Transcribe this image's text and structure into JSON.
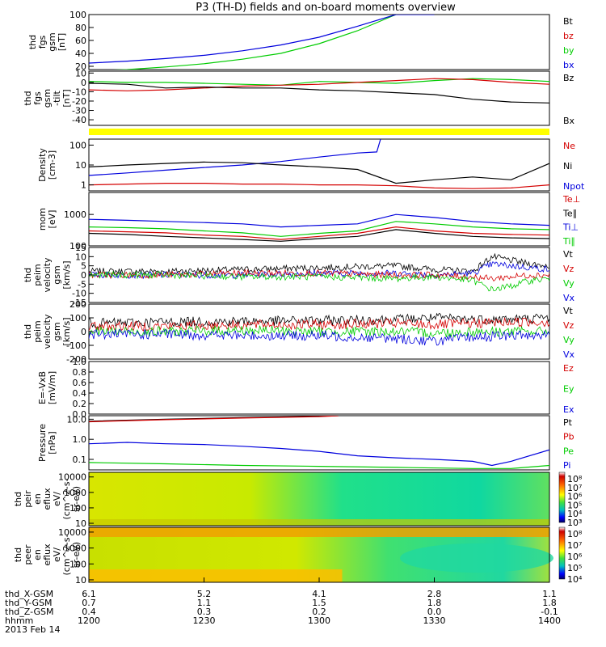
{
  "title": "P3 (TH-D) fields and on-board moments overview",
  "colors": {
    "black": "#000000",
    "red": "#d40000",
    "green": "#00cc00",
    "blue": "#0000dd",
    "yellow": "#ffff00",
    "panel_border": "#000000"
  },
  "chart_data": [
    {
      "type": "line",
      "ylabel_lines": [
        "thd",
        "fgs",
        "gsm",
        "[nT]"
      ],
      "ylim": [
        15,
        100
      ],
      "yticks": [
        "20",
        "40",
        "60",
        "80",
        "100"
      ],
      "legend": [
        {
          "label": "Bt",
          "color": "black"
        },
        {
          "label": "bz",
          "color": "red"
        },
        {
          "label": "by",
          "color": "green"
        },
        {
          "label": "bx",
          "color": "blue"
        }
      ],
      "series": [
        {
          "color": "green",
          "x": [
            1200,
            1210,
            1220,
            1230,
            1240,
            1250,
            1300,
            1310,
            1320
          ],
          "y": [
            13,
            15,
            19,
            24,
            31,
            40,
            55,
            75,
            100
          ]
        },
        {
          "color": "blue",
          "x": [
            1200,
            1210,
            1220,
            1230,
            1240,
            1250,
            1300,
            1310,
            1320,
            1330
          ],
          "y": [
            25,
            28,
            32,
            37,
            44,
            53,
            65,
            82,
            100,
            100
          ]
        }
      ]
    },
    {
      "type": "line",
      "ylabel_lines": [
        "thd",
        "fgs",
        "gsm",
        "-tilt",
        "[nT]"
      ],
      "ylim": [
        -46,
        12
      ],
      "yticks": [
        "10",
        "0",
        "-10",
        "-20",
        "-30",
        "-40"
      ],
      "legend": [
        {
          "label": "Bz",
          "color": "black"
        },
        {
          "label": "Bx",
          "color": "black"
        }
      ],
      "series": [
        {
          "color": "green",
          "x": [
            1200,
            1210,
            1220,
            1230,
            1240,
            1250,
            1300,
            1310,
            1320,
            1330,
            1340,
            1350,
            1400
          ],
          "y": [
            1,
            0,
            0,
            -1,
            -2,
            -3,
            1,
            0,
            -1,
            2,
            4,
            3,
            1
          ]
        },
        {
          "color": "red",
          "x": [
            1200,
            1210,
            1220,
            1230,
            1240,
            1250,
            1300,
            1310,
            1320,
            1330,
            1340,
            1350,
            1400
          ],
          "y": [
            -8,
            -9,
            -8,
            -6,
            -4,
            -3,
            -2,
            0,
            2,
            4,
            3,
            0,
            -2
          ]
        },
        {
          "color": "black",
          "x": [
            1200,
            1210,
            1220,
            1230,
            1240,
            1250,
            1300,
            1310,
            1320,
            1330,
            1340,
            1350,
            1400
          ],
          "y": [
            -1,
            -2,
            -6,
            -5,
            -6,
            -6,
            -8,
            -9,
            -11,
            -13,
            -18,
            -21,
            -22
          ]
        }
      ]
    },
    {
      "type": "line",
      "ylabel_lines": [
        "Density",
        "[cm-3]"
      ],
      "ylim": [
        0.5,
        200
      ],
      "yscale": "log",
      "yticks": [
        "100",
        "10",
        "1"
      ],
      "legend": [
        {
          "label": "Ne",
          "color": "red"
        },
        {
          "label": "Ni",
          "color": "black"
        },
        {
          "label": "Npot",
          "color": "blue"
        }
      ],
      "series": [
        {
          "color": "blue",
          "x": [
            1200,
            1210,
            1220,
            1230,
            1240,
            1250,
            1300,
            1310,
            1315,
            1316
          ],
          "y": [
            3,
            4,
            5.5,
            7.5,
            10,
            15,
            25,
            40,
            45,
            200
          ]
        },
        {
          "color": "black",
          "x": [
            1200,
            1210,
            1220,
            1230,
            1240,
            1250,
            1300,
            1310,
            1320,
            1330,
            1340,
            1350,
            1400
          ],
          "y": [
            8,
            10,
            12,
            14,
            13,
            10,
            8,
            6,
            1.2,
            1.8,
            2.5,
            1.8,
            12
          ]
        },
        {
          "color": "red",
          "x": [
            1200,
            1210,
            1220,
            1230,
            1240,
            1250,
            1300,
            1310,
            1320,
            1330,
            1340,
            1350,
            1400
          ],
          "y": [
            1,
            1.1,
            1.2,
            1.2,
            1.1,
            1.1,
            1.0,
            1.0,
            0.9,
            0.7,
            0.65,
            0.7,
            1.0
          ]
        }
      ]
    },
    {
      "type": "line",
      "ylabel_lines": [
        "mom",
        "[eV]"
      ],
      "ylim": [
        100,
        5000
      ],
      "yscale": "log",
      "yticks": [
        "1000",
        "100"
      ],
      "legend": [
        {
          "label": "Te⊥",
          "color": "red"
        },
        {
          "label": "Te∥",
          "color": "black"
        },
        {
          "label": "Ti⊥",
          "color": "blue"
        },
        {
          "label": "Ti∥",
          "color": "green"
        }
      ],
      "series": [
        {
          "color": "blue",
          "x": [
            1200,
            1210,
            1220,
            1230,
            1240,
            1250,
            1300,
            1310,
            1320,
            1330,
            1340,
            1350,
            1400
          ],
          "y": [
            700,
            650,
            600,
            550,
            500,
            400,
            450,
            500,
            1000,
            800,
            600,
            500,
            450
          ]
        },
        {
          "color": "green",
          "x": [
            1200,
            1210,
            1220,
            1230,
            1240,
            1250,
            1300,
            1310,
            1320,
            1330,
            1340,
            1350,
            1400
          ],
          "y": [
            400,
            380,
            350,
            300,
            260,
            200,
            250,
            300,
            600,
            500,
            400,
            350,
            330
          ]
        },
        {
          "color": "red",
          "x": [
            1200,
            1210,
            1220,
            1230,
            1240,
            1250,
            1300,
            1310,
            1320,
            1330,
            1340,
            1350,
            1400
          ],
          "y": [
            300,
            280,
            260,
            220,
            200,
            160,
            200,
            250,
            400,
            300,
            250,
            230,
            220
          ]
        },
        {
          "color": "black",
          "x": [
            1200,
            1210,
            1220,
            1230,
            1240,
            1250,
            1300,
            1310,
            1320,
            1330,
            1340,
            1350,
            1400
          ],
          "y": [
            250,
            230,
            200,
            180,
            160,
            140,
            170,
            200,
            330,
            250,
            200,
            180,
            170
          ]
        }
      ]
    },
    {
      "type": "line",
      "ylabel_lines": [
        "thd",
        "peim",
        "velocity",
        "gsm",
        "[km/s]"
      ],
      "ylim": [
        -15,
        15
      ],
      "yticks": [
        "15",
        "10",
        "5",
        "0",
        "-5",
        "-10",
        "-15"
      ],
      "legend": [
        {
          "label": "Vt",
          "color": "black"
        },
        {
          "label": "Vz",
          "color": "red"
        },
        {
          "label": "Vy",
          "color": "green"
        },
        {
          "label": "Vx",
          "color": "blue"
        }
      ],
      "series": [
        {
          "color": "black",
          "x": [
            1200,
            1220,
            1240,
            1300,
            1320,
            1330,
            1340,
            1345,
            1350,
            1355,
            1400
          ],
          "y": [
            2,
            2,
            3,
            4,
            5,
            3,
            2,
            10,
            8,
            6,
            5
          ]
        },
        {
          "color": "blue",
          "x": [
            1200,
            1220,
            1240,
            1300,
            1320,
            1330,
            1340,
            1345,
            1350,
            1355,
            1400
          ],
          "y": [
            0,
            0,
            0,
            1,
            1,
            0,
            1,
            6,
            5,
            4,
            3
          ]
        },
        {
          "color": "red",
          "x": [
            1200,
            1220,
            1240,
            1300,
            1320,
            1330,
            1340,
            1345,
            1350,
            1355,
            1400
          ],
          "y": [
            0,
            0,
            1,
            1,
            0,
            0,
            -1,
            -2,
            -1,
            0,
            0
          ]
        },
        {
          "color": "green",
          "x": [
            1200,
            1220,
            1240,
            1300,
            1320,
            1330,
            1340,
            1345,
            1350,
            1355,
            1400
          ],
          "y": [
            0,
            0,
            -1,
            -1,
            -2,
            -1,
            -3,
            -8,
            -6,
            -3,
            -2
          ]
        }
      ]
    },
    {
      "type": "line",
      "ylabel_lines": [
        "thd",
        "peim",
        "velocity",
        "gsm",
        "[km/s]"
      ],
      "ylim": [
        -200,
        200
      ],
      "yticks": [
        "200",
        "100",
        "0",
        "-100",
        "-200"
      ],
      "legend": [
        {
          "label": "Vt",
          "color": "black"
        },
        {
          "label": "Vz",
          "color": "red"
        },
        {
          "label": "Vy",
          "color": "green"
        },
        {
          "label": "Vx",
          "color": "blue"
        }
      ],
      "series": [
        {
          "color": "black",
          "x": [
            1200,
            1220,
            1240,
            1300,
            1320,
            1330,
            1340,
            1350,
            1400
          ],
          "y": [
            60,
            70,
            75,
            80,
            90,
            100,
            90,
            90,
            100
          ]
        },
        {
          "color": "red",
          "x": [
            1200,
            1220,
            1240,
            1300,
            1320,
            1330,
            1340,
            1350,
            1400
          ],
          "y": [
            40,
            40,
            50,
            50,
            60,
            50,
            60,
            70,
            70
          ]
        },
        {
          "color": "green",
          "x": [
            1200,
            1220,
            1240,
            1300,
            1320,
            1330,
            1340,
            1350,
            1400
          ],
          "y": [
            0,
            0,
            10,
            0,
            0,
            -10,
            0,
            0,
            0
          ]
        },
        {
          "color": "blue",
          "x": [
            1200,
            1220,
            1240,
            1300,
            1320,
            1330,
            1340,
            1350,
            1400
          ],
          "y": [
            -20,
            -20,
            -30,
            -30,
            -50,
            -70,
            -40,
            -30,
            -20
          ]
        }
      ]
    },
    {
      "type": "line",
      "ylabel_lines": [
        "E=-VxB",
        "[mV/m]"
      ],
      "ylim": [
        0,
        1
      ],
      "yticks": [
        "1.0",
        "0.8",
        "0.6",
        "0.4",
        "0.2",
        "0.0"
      ],
      "legend": [
        {
          "label": "Ez",
          "color": "red"
        },
        {
          "label": "Ey",
          "color": "green"
        },
        {
          "label": "Ex",
          "color": "blue"
        }
      ],
      "series": []
    },
    {
      "type": "line",
      "ylabel_lines": [
        "Pressure",
        "[nPa]"
      ],
      "ylim": [
        0.03,
        15
      ],
      "yscale": "log",
      "yticks": [
        "10.0",
        "1.0",
        "0.1"
      ],
      "legend": [
        {
          "label": "Pt",
          "color": "black"
        },
        {
          "label": "Pb",
          "color": "red"
        },
        {
          "label": "Pe",
          "color": "green"
        },
        {
          "label": "Pi",
          "color": "blue"
        }
      ],
      "series": [
        {
          "color": "black",
          "x": [
            1200,
            1220,
            1240,
            1300,
            1305
          ],
          "y": [
            8,
            10,
            12,
            14,
            15
          ]
        },
        {
          "color": "red",
          "x": [
            1200,
            1220,
            1240,
            1300,
            1305
          ],
          "y": [
            7.5,
            9.5,
            11.5,
            13.5,
            15
          ]
        },
        {
          "color": "blue",
          "x": [
            1200,
            1210,
            1220,
            1230,
            1240,
            1250,
            1300,
            1310,
            1320,
            1330,
            1340,
            1345,
            1350,
            1400
          ],
          "y": [
            0.6,
            0.7,
            0.6,
            0.55,
            0.45,
            0.35,
            0.25,
            0.15,
            0.12,
            0.1,
            0.08,
            0.05,
            0.08,
            0.3
          ]
        },
        {
          "color": "green",
          "x": [
            1200,
            1220,
            1240,
            1300,
            1320,
            1340,
            1350,
            1400
          ],
          "y": [
            0.07,
            0.06,
            0.05,
            0.045,
            0.04,
            0.035,
            0.035,
            0.05
          ]
        }
      ]
    },
    {
      "type": "heatmap",
      "ylabel_lines": [
        "thd",
        "peir",
        "en",
        "eflux",
        "eV/",
        "(cm^2-s-",
        "sr-eV)"
      ],
      "ylim": [
        7,
        20000
      ],
      "yscale": "log",
      "yticks": [
        "10000",
        "1000",
        "100",
        "10"
      ],
      "colorbar_labels": [
        "10⁸",
        "10⁷",
        "10⁶",
        "10⁵",
        "10⁴",
        "10³"
      ]
    },
    {
      "type": "heatmap",
      "ylabel_lines": [
        "thd",
        "peer",
        "en",
        "eflux",
        "eV/",
        "(cm^2-s-",
        "sr-eV)"
      ],
      "ylim": [
        7,
        20000
      ],
      "yscale": "log",
      "yticks": [
        "10000",
        "1000",
        "100",
        "10"
      ],
      "colorbar_labels": [
        "10⁸",
        "10⁷",
        "10⁶",
        "10⁵",
        "10⁴"
      ]
    }
  ],
  "xaxis": {
    "rows": [
      {
        "label": "thd_X-GSM",
        "values": [
          "6.1",
          "5.2",
          "4.1",
          "2.8",
          "1.1"
        ]
      },
      {
        "label": "thd_Y-GSM",
        "values": [
          "0.7",
          "1.1",
          "1.5",
          "1.8",
          "1.8"
        ]
      },
      {
        "label": "thd_Z-GSM",
        "values": [
          "0.4",
          "0.3",
          "0.2",
          "0.0",
          "-0.1"
        ]
      },
      {
        "label": "hhmm",
        "values": [
          "1200",
          "1230",
          "1300",
          "1330",
          "1400"
        ]
      }
    ],
    "date": "2013 Feb 14"
  }
}
